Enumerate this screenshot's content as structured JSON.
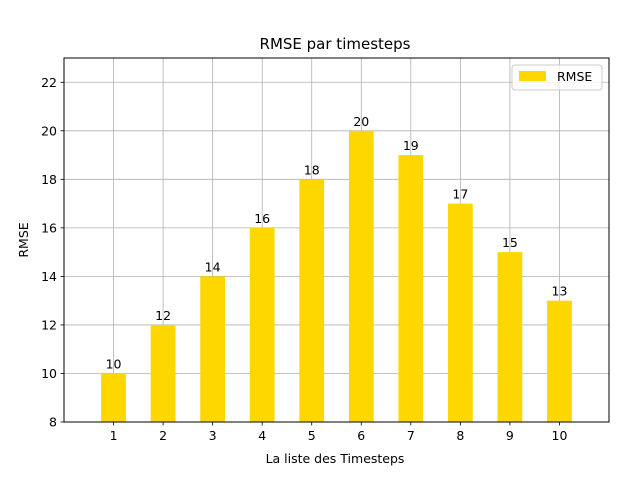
{
  "chart_data": {
    "type": "bar",
    "title": "RMSE par timesteps",
    "xlabel": "La liste des Timesteps",
    "ylabel": "RMSE",
    "categories": [
      "1",
      "2",
      "3",
      "4",
      "5",
      "6",
      "7",
      "8",
      "9",
      "10"
    ],
    "series": [
      {
        "name": "RMSE",
        "values": [
          10,
          12,
          14,
          16,
          18,
          20,
          19,
          17,
          15,
          13
        ]
      }
    ],
    "data_labels": [
      "10",
      "12",
      "14",
      "16",
      "18",
      "20",
      "19",
      "17",
      "15",
      "13"
    ],
    "ylim": [
      8,
      23
    ],
    "yticks": [
      "8",
      "10",
      "12",
      "14",
      "16",
      "18",
      "20",
      "22"
    ],
    "grid": true,
    "legend_position": "top-right",
    "colors": {
      "bar": "#FFD700",
      "grid": "#b0b0b0",
      "axis": "#000000"
    }
  }
}
